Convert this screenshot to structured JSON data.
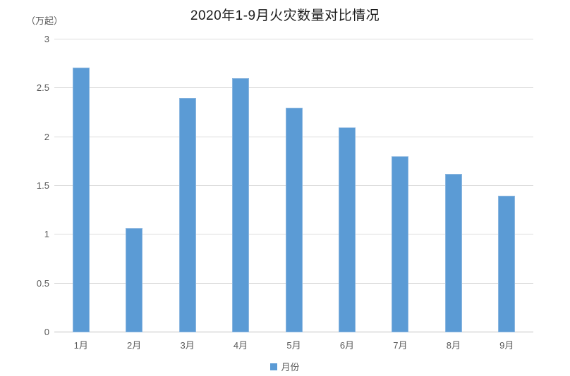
{
  "chart_data": {
    "type": "bar",
    "title": "2020年1-9月火灾数量对比情况",
    "unit_label": "（万起）",
    "categories": [
      "1月",
      "2月",
      "3月",
      "4月",
      "5月",
      "6月",
      "7月",
      "8月",
      "9月"
    ],
    "values": [
      2.71,
      1.07,
      2.4,
      2.6,
      2.3,
      2.1,
      1.8,
      1.62,
      1.4
    ],
    "series_name": "月份",
    "xlabel": "",
    "ylabel": "",
    "ylim": [
      0,
      3
    ],
    "ytick_labels": [
      "0",
      "0.5",
      "1",
      "1.5",
      "2",
      "2.5",
      "3"
    ],
    "grid": true,
    "legend_position": "bottom",
    "bar_color": "#5B9BD5",
    "grid_color": "#DCDCDC",
    "axis_line_color": "#BFBFBF",
    "text_color": "#595959",
    "title_color": "#1A1A1A"
  }
}
